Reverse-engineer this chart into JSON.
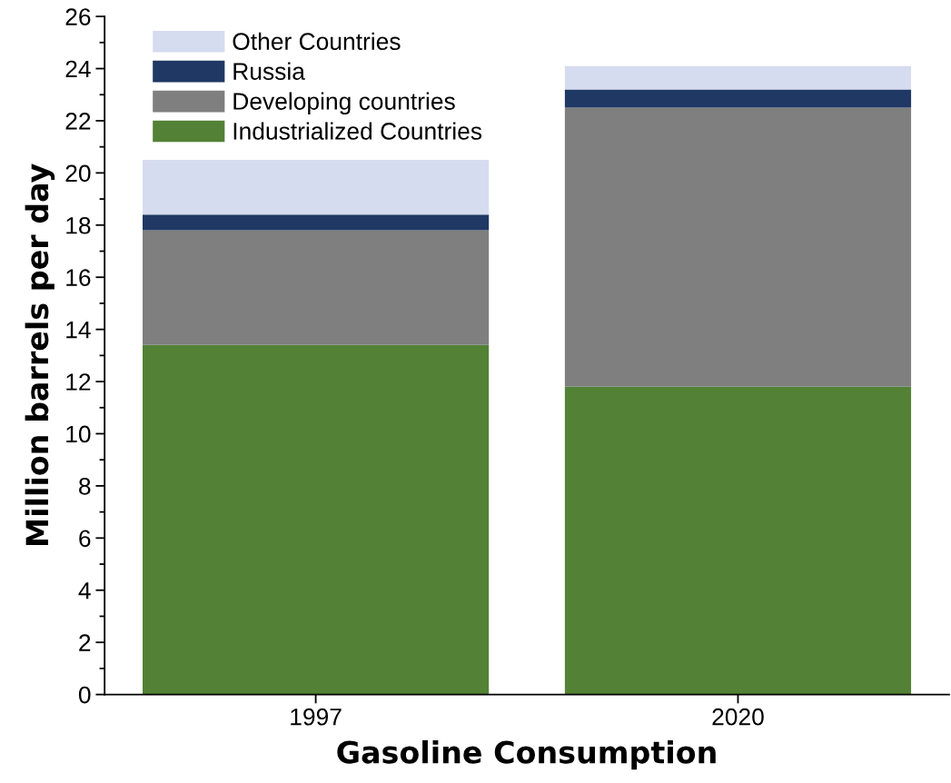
{
  "chart_data": {
    "type": "bar",
    "stacked": true,
    "xlabel": "Gasoline Consumption",
    "ylabel": "Million barrels per day",
    "categories": [
      "1997",
      "2020"
    ],
    "series": [
      {
        "name": "Industrialized Countries",
        "color": "#538135",
        "values": [
          13.4,
          11.8
        ]
      },
      {
        "name": "Developing countries",
        "color": "#7f7f7f",
        "values": [
          4.4,
          10.7
        ]
      },
      {
        "name": "Russia",
        "color": "#203864",
        "values": [
          0.6,
          0.7
        ]
      },
      {
        "name": "Other Countries",
        "color": "#d6dcef",
        "values": [
          2.1,
          0.9
        ]
      }
    ],
    "ylim": [
      0,
      26
    ],
    "yticks": [
      0,
      2,
      4,
      6,
      8,
      10,
      12,
      14,
      16,
      18,
      20,
      22,
      24,
      26
    ],
    "grid": false,
    "legend": "top left"
  }
}
